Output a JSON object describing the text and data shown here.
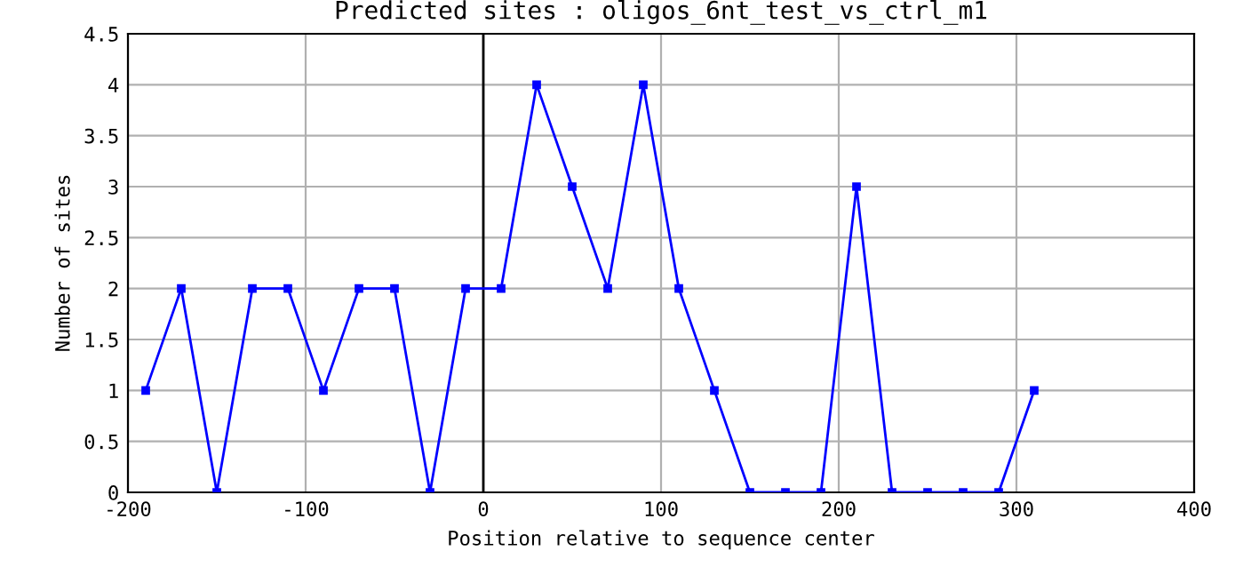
{
  "chart_data": {
    "type": "line",
    "title": "Predicted sites : oligos_6nt_test_vs_ctrl_m1",
    "xlabel": "Position relative to sequence center",
    "ylabel": "Number of sites",
    "series": [
      {
        "color": "#0000ff",
        "x": [
          -190,
          -170,
          -150,
          -130,
          -110,
          -90,
          -70,
          -50,
          -30,
          -10,
          10,
          30,
          50,
          70,
          90,
          110,
          130,
          150,
          170,
          190,
          210,
          230,
          250,
          270,
          290,
          310
        ],
        "values": [
          1,
          2,
          0,
          2,
          2,
          1,
          2,
          2,
          0,
          2,
          2,
          4,
          3,
          2,
          4,
          2,
          1,
          0,
          0,
          0,
          3,
          0,
          0,
          0,
          0,
          1
        ]
      }
    ],
    "xlim": [
      -200,
      400
    ],
    "xticks": [
      -200,
      -100,
      0,
      100,
      200,
      300,
      400
    ],
    "ylim": [
      0,
      4.5
    ],
    "yticks": [
      0,
      0.5,
      1,
      1.5,
      2,
      2.5,
      3,
      3.5,
      4,
      4.5
    ],
    "grid": true,
    "marker": "square",
    "line_style": "solid",
    "ref_lines": [
      {
        "axis": "x",
        "value": 0,
        "color": "#000000"
      }
    ]
  }
}
